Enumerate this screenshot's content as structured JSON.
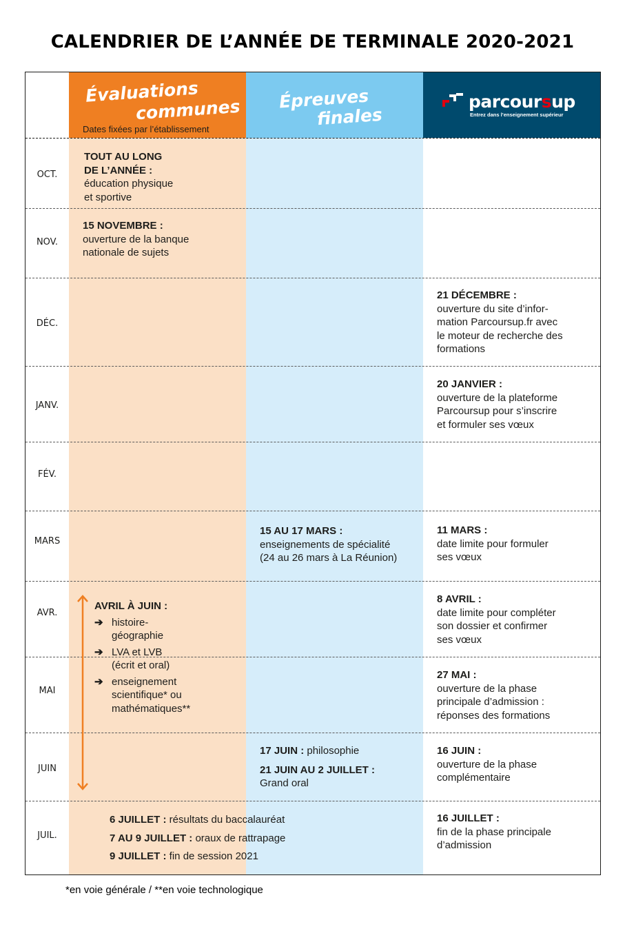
{
  "title": "CALENDRIER DE L’ANNÉE DE TERMINALE 2020-2021",
  "columns": {
    "evaluations": {
      "line1": "Évaluations",
      "line2": "communes",
      "subtitle": "Dates fixées par l’établissement",
      "color": "#ef7f22",
      "band_color": "#fbe0c6"
    },
    "epreuves": {
      "line1": "Épreuves",
      "line2": "finales",
      "color": "#7ccaf0",
      "band_color": "#d6edfa"
    },
    "parcoursup": {
      "logo_text_a": "parcour",
      "logo_text_s": "s",
      "logo_text_b": "up",
      "tagline": "Entrez dans l’enseignement supérieur",
      "color": "#004a6d",
      "accent": "#e1000f"
    }
  },
  "months": [
    "OCT.",
    "NOV.",
    "DÉC.",
    "JANV.",
    "FÉV.",
    "MARS",
    "AVR.",
    "MAI",
    "JUIN",
    "JUIL."
  ],
  "evaluations": {
    "oct": {
      "date_l1": "TOUT AU LONG",
      "date_l2": "DE L’ANNÉE :",
      "l1": "éducation physique",
      "l2": "et sportive"
    },
    "nov": {
      "date": "15 NOVEMBRE :",
      "l1": "ouverture de la banque",
      "l2": "nationale de sujets"
    },
    "avr_juin": {
      "date": "AVRIL À JUIN :",
      "arrow": "➔",
      "items": [
        {
          "l1": "histoire-",
          "l2": "géographie"
        },
        {
          "l1": "LVA et LVB",
          "l2": "(écrit et oral)"
        },
        {
          "l1": "enseignement",
          "l2": "scientifique* ou",
          "l3": "mathématiques**"
        }
      ]
    }
  },
  "epreuves": {
    "mars": {
      "date": "15 AU 17 MARS :",
      "l1": "enseignements de spécialité",
      "l2": "(24 au 26 mars à La Réunion)"
    },
    "juin": {
      "date1": "17 JUIN :",
      "text1": " philosophie",
      "date2": "21 JUIN AU 2 JUILLET :",
      "text2": "Grand oral"
    }
  },
  "juillet": [
    {
      "date": "6 JUILLET :",
      "text": " résultats du baccalauréat"
    },
    {
      "date": "7 AU 9 JUILLET :",
      "text": " oraux de rattrapage"
    },
    {
      "date": "9 JUILLET :",
      "text": " fin de session 2021"
    }
  ],
  "parcoursup": {
    "dec": {
      "date": "21 DÉCEMBRE :",
      "l1": "ouverture du site d’infor-",
      "l2": "mation Parcoursup.fr avec",
      "l3": "le moteur de recherche des",
      "l4": "formations"
    },
    "janv": {
      "date": "20 JANVIER :",
      "l1": "ouverture de la plateforme",
      "l2": "Parcoursup pour s’inscrire",
      "l3": "et formuler ses vœux"
    },
    "mars": {
      "date": "11 MARS :",
      "l1": "date limite pour formuler",
      "l2": "ses vœux"
    },
    "avr": {
      "date": "8 AVRIL :",
      "l1": "date limite pour compléter",
      "l2": "son dossier et confirmer",
      "l3": "ses vœux"
    },
    "mai": {
      "date": "27 MAI :",
      "l1": "ouverture de la phase",
      "l2": "principale d’admission :",
      "l3": "réponses des formations"
    },
    "juin": {
      "date": "16 JUIN :",
      "l1": "ouverture de la phase",
      "l2": "complémentaire"
    },
    "juil": {
      "date": "16 JUILLET :",
      "l1": "fin de la phase principale",
      "l2": "d’admission"
    }
  },
  "footnote": "*en voie générale / **en voie technologique"
}
